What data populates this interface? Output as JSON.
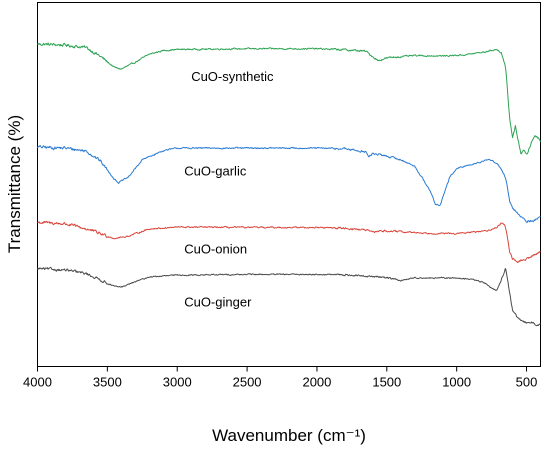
{
  "chart_data": {
    "type": "line",
    "xlabel": "Wavenumber (cm⁻¹)",
    "ylabel": "Transmittance (%)",
    "xlim": [
      4000,
      400
    ],
    "x_reversed": true,
    "ylim": [
      0,
      100
    ],
    "y_ticks_labeled": false,
    "x_ticks": [
      4000,
      3500,
      3000,
      2500,
      2000,
      1500,
      1000,
      500
    ],
    "x_tick_labels": [
      "4000",
      "3500",
      "3000",
      "2500",
      "2000",
      "1500",
      "1000",
      "500"
    ],
    "grid": false,
    "series": [
      {
        "name": "CuO-synthetic",
        "color": "#2ca352",
        "noise": 0.35,
        "label_at": [
          2900,
          78.5
        ],
        "points": [
          [
            4000,
            88.6
          ],
          [
            3800,
            88.3
          ],
          [
            3650,
            87.6
          ],
          [
            3550,
            85.2
          ],
          [
            3450,
            82.2
          ],
          [
            3400,
            81.7
          ],
          [
            3300,
            83.6
          ],
          [
            3200,
            85.8
          ],
          [
            3100,
            86.8
          ],
          [
            3000,
            87.1
          ],
          [
            2500,
            87.3
          ],
          [
            2000,
            87.3
          ],
          [
            1800,
            87.0
          ],
          [
            1650,
            86.6
          ],
          [
            1600,
            85.1
          ],
          [
            1560,
            84.0
          ],
          [
            1520,
            84.6
          ],
          [
            1450,
            85.0
          ],
          [
            1300,
            85.4
          ],
          [
            1100,
            85.3
          ],
          [
            950,
            85.6
          ],
          [
            800,
            86.4
          ],
          [
            720,
            87.1
          ],
          [
            680,
            86.4
          ],
          [
            650,
            82.0
          ],
          [
            620,
            68.0
          ],
          [
            600,
            63.0
          ],
          [
            580,
            66.0
          ],
          [
            560,
            62.0
          ],
          [
            540,
            58.6
          ],
          [
            520,
            59.5
          ],
          [
            500,
            58.0
          ],
          [
            480,
            60.0
          ],
          [
            460,
            62.0
          ],
          [
            440,
            63.5
          ],
          [
            420,
            63.0
          ],
          [
            400,
            62.0
          ]
        ]
      },
      {
        "name": "CuO-garlic",
        "color": "#2a7bd2",
        "noise": 0.35,
        "label_at": [
          2950,
          52.5
        ],
        "points": [
          [
            4000,
            60.3
          ],
          [
            3800,
            60.0
          ],
          [
            3650,
            59.2
          ],
          [
            3550,
            56.5
          ],
          [
            3450,
            51.5
          ],
          [
            3420,
            50.5
          ],
          [
            3350,
            52.0
          ],
          [
            3250,
            56.8
          ],
          [
            3100,
            59.3
          ],
          [
            3000,
            60.0
          ],
          [
            2500,
            60.0
          ],
          [
            2000,
            60.0
          ],
          [
            1800,
            59.8
          ],
          [
            1650,
            59.0
          ],
          [
            1630,
            57.5
          ],
          [
            1600,
            58.5
          ],
          [
            1500,
            57.8
          ],
          [
            1400,
            56.8
          ],
          [
            1300,
            55.0
          ],
          [
            1200,
            49.0
          ],
          [
            1150,
            44.5
          ],
          [
            1120,
            44.2
          ],
          [
            1090,
            47.5
          ],
          [
            1050,
            52.0
          ],
          [
            1000,
            54.3
          ],
          [
            900,
            55.5
          ],
          [
            800,
            56.5
          ],
          [
            750,
            56.8
          ],
          [
            700,
            55.3
          ],
          [
            650,
            52.0
          ],
          [
            620,
            45.0
          ],
          [
            600,
            43.5
          ],
          [
            560,
            42.0
          ],
          [
            500,
            39.8
          ],
          [
            450,
            40.0
          ],
          [
            420,
            40.8
          ],
          [
            400,
            41.0
          ]
        ]
      },
      {
        "name": "CuO-onion",
        "color": "#d9463c",
        "noise": 0.35,
        "label_at": [
          2950,
          31.0
        ],
        "points": [
          [
            4000,
            39.6
          ],
          [
            3800,
            39.2
          ],
          [
            3650,
            37.8
          ],
          [
            3550,
            36.5
          ],
          [
            3450,
            35.2
          ],
          [
            3350,
            35.8
          ],
          [
            3200,
            37.8
          ],
          [
            3000,
            38.3
          ],
          [
            2500,
            38.2
          ],
          [
            2000,
            38.2
          ],
          [
            1800,
            38.0
          ],
          [
            1650,
            37.5
          ],
          [
            1600,
            36.8
          ],
          [
            1550,
            37.3
          ],
          [
            1400,
            37.0
          ],
          [
            1200,
            36.6
          ],
          [
            1000,
            36.5
          ],
          [
            800,
            37.2
          ],
          [
            720,
            38.0
          ],
          [
            680,
            39.5
          ],
          [
            650,
            38.5
          ],
          [
            620,
            31.5
          ],
          [
            600,
            29.3
          ],
          [
            560,
            28.9
          ],
          [
            500,
            29.5
          ],
          [
            450,
            30.5
          ],
          [
            400,
            31.6
          ]
        ]
      },
      {
        "name": "CuO-ginger",
        "color": "#4a4a4a",
        "noise": 0.3,
        "label_at": [
          2950,
          16.5
        ],
        "points": [
          [
            4000,
            26.9
          ],
          [
            3800,
            26.5
          ],
          [
            3650,
            25.5
          ],
          [
            3550,
            23.8
          ],
          [
            3450,
            22.0
          ],
          [
            3400,
            21.8
          ],
          [
            3300,
            23.3
          ],
          [
            3200,
            24.6
          ],
          [
            3000,
            25.1
          ],
          [
            2500,
            25.3
          ],
          [
            2000,
            25.3
          ],
          [
            1800,
            25.2
          ],
          [
            1650,
            24.8
          ],
          [
            1500,
            24.5
          ],
          [
            1400,
            23.6
          ],
          [
            1300,
            24.4
          ],
          [
            1200,
            24.3
          ],
          [
            1000,
            24.3
          ],
          [
            900,
            24.0
          ],
          [
            800,
            23.0
          ],
          [
            750,
            21.5
          ],
          [
            710,
            21.0
          ],
          [
            680,
            24.0
          ],
          [
            650,
            27.0
          ],
          [
            620,
            20.0
          ],
          [
            600,
            15.5
          ],
          [
            560,
            13.0
          ],
          [
            500,
            12.0
          ],
          [
            450,
            12.3
          ],
          [
            430,
            11.0
          ],
          [
            400,
            11.5
          ]
        ]
      }
    ]
  }
}
